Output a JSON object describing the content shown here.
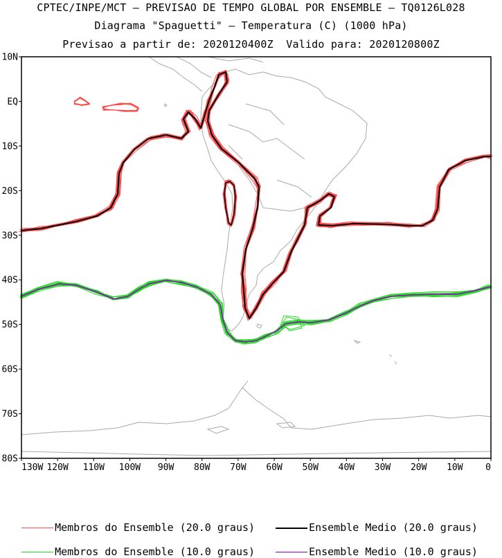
{
  "title": {
    "line1": "CPTEC/INPE/MCT — PREVISAO DE TEMPO GLOBAL POR ENSEMBLE — TQ0126L028",
    "line2": "Diagrama \"Spaguetti\" — Temperatura (C) (1000 hPa)",
    "line3": "Previsao a partir de: 2020120400Z  Valido para: 2020120800Z"
  },
  "axes": {
    "lat_labels": [
      "10N",
      "EQ",
      "10S",
      "20S",
      "30S",
      "40S",
      "50S",
      "60S",
      "70S",
      "80S"
    ],
    "lat_values": [
      10,
      0,
      -10,
      -20,
      -30,
      -40,
      -50,
      -60,
      -70,
      -80
    ],
    "lon_labels": [
      "130W",
      "120W",
      "110W",
      "100W",
      "90W",
      "80W",
      "70W",
      "60W",
      "50W",
      "40W",
      "30W",
      "20W",
      "10W",
      "0"
    ],
    "lon_values": [
      -130,
      -120,
      -110,
      -100,
      -90,
      -80,
      -70,
      -60,
      -50,
      -40,
      -30,
      -20,
      -10,
      0
    ]
  },
  "colors": {
    "member20": "#ff4a4a",
    "mean20": "#000000",
    "member10": "#22dd22",
    "mean10": "#9a00c8",
    "coast": "#a8a8a8"
  },
  "legend": [
    {
      "label": "Membros do Ensemble (20.0 graus)",
      "color": "#ff4a4a"
    },
    {
      "label": "Ensemble Medio (20.0 graus)",
      "color": "#000000"
    },
    {
      "label": "Membros do Ensemble (10.0 graus)",
      "color": "#22dd22"
    },
    {
      "label": "Ensemble Medio (10.0 graus)",
      "color": "#9a00c8"
    }
  ]
}
